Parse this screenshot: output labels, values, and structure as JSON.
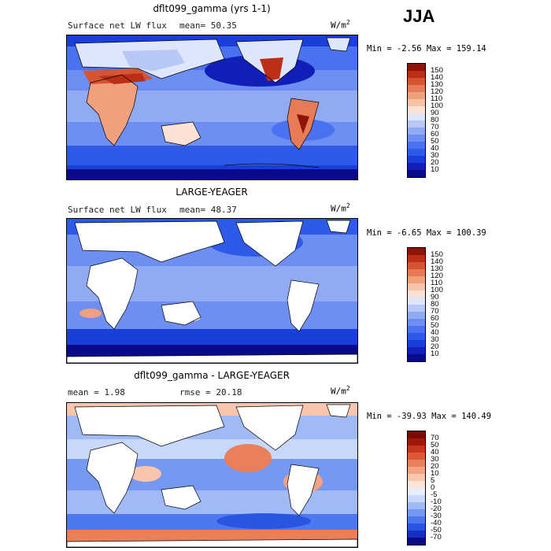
{
  "season": "JJA",
  "panels": [
    {
      "title": "dflt099_gamma (yrs 1-1)",
      "subtitle_left": "Surface net LW flux",
      "subtitle_right": "mean=  50.35",
      "units": "W/m",
      "units_sup": "2",
      "minmax": "Min =  -2.56 Max = 159.14",
      "colorbar_labels": [
        "150",
        "140",
        "130",
        "120",
        "110",
        "100",
        "90",
        "80",
        "70",
        "60",
        "50",
        "40",
        "30",
        "20",
        "10"
      ]
    },
    {
      "title": "LARGE-YEAGER",
      "subtitle_left": "Surface net LW flux",
      "subtitle_right": "mean=  48.37",
      "units": "W/m",
      "units_sup": "2",
      "minmax": "Min =  -6.65 Max = 100.39",
      "colorbar_labels": [
        "150",
        "140",
        "130",
        "120",
        "110",
        "100",
        "90",
        "80",
        "70",
        "60",
        "50",
        "40",
        "30",
        "20",
        "10"
      ]
    },
    {
      "title": "dflt099_gamma - LARGE-YEAGER",
      "subtitle_left": "mean =   1.98",
      "subtitle_right": "rmse =  20.18",
      "units": "W/m",
      "units_sup": "2",
      "minmax": "Min = -39.93 Max = 140.49",
      "colorbar_labels": [
        "70",
        "50",
        "40",
        "30",
        "20",
        "10",
        "5",
        "0",
        "-5",
        "-10",
        "-20",
        "-30",
        "-40",
        "-50",
        "-70"
      ]
    }
  ],
  "colors": {
    "abs_scale": [
      "#0a0a8a",
      "#0f1fb8",
      "#1a3fd8",
      "#2e5ae8",
      "#4a72f0",
      "#6d8ef2",
      "#91aaf4",
      "#b7c8f7",
      "#dde6fb",
      "#fbe2d4",
      "#f7c3a8",
      "#f1a07e",
      "#e67b55",
      "#d6542f",
      "#bb2f16",
      "#8f1408"
    ],
    "diff_scale": [
      "#0a0a8a",
      "#1530c0",
      "#2a55e0",
      "#4d78ee",
      "#7599f2",
      "#9fbaf6",
      "#c8d8fa",
      "#e8effc",
      "#fde4d6",
      "#f9c5ac",
      "#f3a382",
      "#ea7f5a",
      "#dc5a35",
      "#c6361a",
      "#a0180a",
      "#7a0a04"
    ]
  }
}
